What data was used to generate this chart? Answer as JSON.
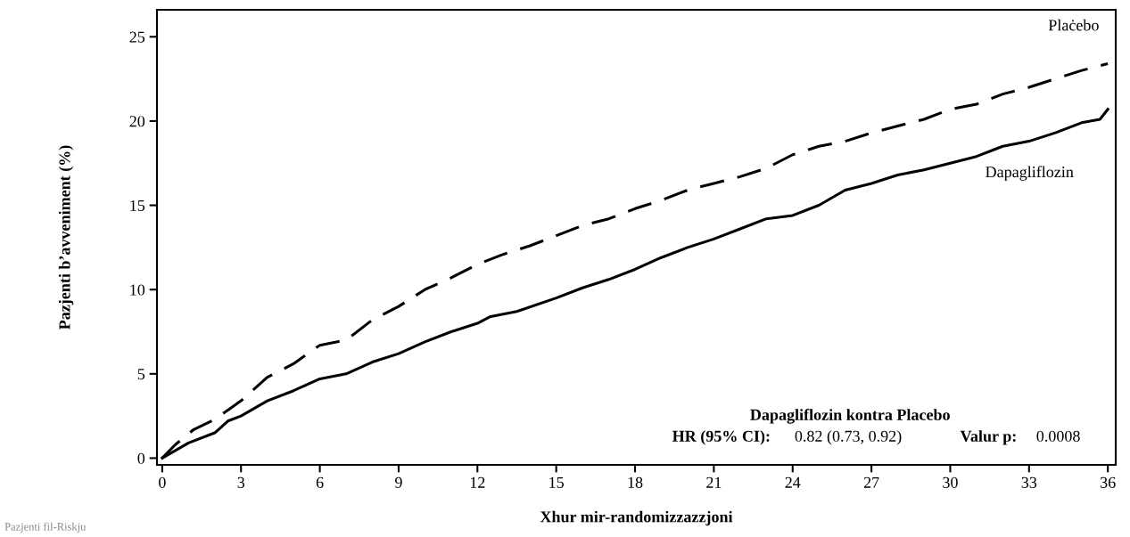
{
  "chart_data": {
    "type": "line",
    "xlabel": "Xhur mir-randomizzazzjoni",
    "ylabel": "Pazjenti b’avveniment (%)",
    "xlim": [
      -0.2,
      36.3
    ],
    "ylim": [
      -0.4,
      26.6
    ],
    "xticks": [
      0,
      3,
      6,
      9,
      12,
      15,
      18,
      21,
      24,
      27,
      30,
      33,
      36
    ],
    "yticks": [
      0,
      5,
      10,
      15,
      20,
      25
    ],
    "grid": false,
    "legend": false,
    "marker": "none",
    "series": [
      {
        "name": "Plaċebo",
        "color": "#000000",
        "line_style": "dashed",
        "x": [
          0,
          0.5,
          1.2,
          2,
          3,
          4,
          5,
          6,
          7,
          8,
          9,
          10,
          11,
          12,
          13,
          14,
          15,
          16,
          17,
          18,
          19,
          20,
          21,
          22,
          23,
          24,
          25,
          26,
          27,
          28,
          29,
          30,
          31,
          32,
          33,
          34,
          35,
          36
        ],
        "values": [
          0,
          0.8,
          1.7,
          2.3,
          3.4,
          4.8,
          5.6,
          6.7,
          7.0,
          8.2,
          9.0,
          10.0,
          10.7,
          11.5,
          12.1,
          12.6,
          13.2,
          13.8,
          14.2,
          14.8,
          15.3,
          15.9,
          16.3,
          16.7,
          17.2,
          18.0,
          18.5,
          18.8,
          19.3,
          19.7,
          20.1,
          20.7,
          21.0,
          21.6,
          22.0,
          22.5,
          23.0,
          23.4
        ]
      },
      {
        "name": "Dapagliflozin",
        "color": "#000000",
        "line_style": "solid",
        "x": [
          0,
          1,
          2,
          2.5,
          3,
          4,
          5,
          6,
          7,
          8,
          9,
          10,
          11,
          12,
          12.5,
          13.5,
          15,
          16,
          17,
          18,
          19,
          20,
          21,
          22,
          23,
          24,
          25,
          26,
          27,
          28,
          29,
          30,
          31,
          32,
          33,
          34,
          35,
          35.7,
          36
        ],
        "values": [
          0,
          0.9,
          1.5,
          2.2,
          2.5,
          3.4,
          4.0,
          4.7,
          5.0,
          5.7,
          6.2,
          6.9,
          7.5,
          8.0,
          8.4,
          8.7,
          9.5,
          10.1,
          10.6,
          11.2,
          11.9,
          12.5,
          13.0,
          13.6,
          14.2,
          14.4,
          15.0,
          15.9,
          16.3,
          16.8,
          17.1,
          17.5,
          17.9,
          18.5,
          18.8,
          19.3,
          19.9,
          20.1,
          20.7
        ]
      }
    ],
    "annotations": [
      "Dapagliflozin kontra Placebo",
      "HR (95% CI):",
      "0.82 (0.73, 0.92)",
      "Valur p:",
      "0.0008",
      "Pazjenti fil-Riskju"
    ]
  }
}
